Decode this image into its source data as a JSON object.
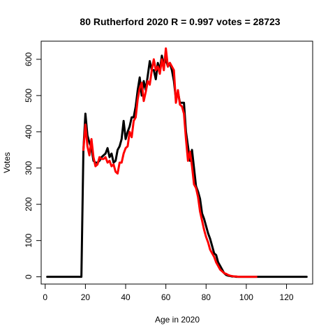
{
  "chart_data": {
    "type": "line",
    "title": "80 Rutherford 2020 R = 0.997 votes = 28723",
    "xlabel": "Age in 2020",
    "ylabel": "Votes",
    "xlim": [
      -2,
      133
    ],
    "ylim": [
      -20,
      650
    ],
    "xticks": [
      0,
      20,
      40,
      60,
      80,
      100,
      120
    ],
    "yticks": [
      0,
      100,
      200,
      300,
      400,
      500,
      600
    ],
    "grid": false,
    "legend": "none",
    "series": [
      {
        "color": "#000000",
        "x": [
          1,
          2,
          3,
          4,
          5,
          6,
          7,
          8,
          9,
          10,
          11,
          12,
          13,
          14,
          15,
          16,
          17,
          18,
          19,
          20,
          21,
          22,
          23,
          24,
          25,
          26,
          27,
          28,
          29,
          30,
          31,
          32,
          33,
          34,
          35,
          36,
          37,
          38,
          39,
          40,
          41,
          42,
          43,
          44,
          45,
          46,
          47,
          48,
          49,
          50,
          51,
          52,
          53,
          54,
          55,
          56,
          57,
          58,
          59,
          60,
          61,
          62,
          63,
          64,
          65,
          66,
          67,
          68,
          69,
          70,
          71,
          72,
          73,
          74,
          75,
          76,
          77,
          78,
          79,
          80,
          81,
          82,
          83,
          84,
          85,
          86,
          87,
          88,
          89,
          90,
          91,
          92,
          93,
          94,
          95,
          96,
          97,
          98,
          99,
          100,
          101,
          102,
          103,
          104,
          105,
          106,
          107,
          108,
          109,
          110,
          111,
          112,
          113,
          114,
          115,
          116,
          117,
          118,
          119,
          120,
          121,
          122,
          123,
          124,
          125,
          126,
          127,
          128,
          129,
          130
        ],
        "y": [
          0,
          0,
          0,
          0,
          0,
          0,
          0,
          0,
          0,
          0,
          0,
          0,
          0,
          0,
          0,
          0,
          0,
          0,
          350,
          450,
          390,
          370,
          355,
          320,
          315,
          315,
          320,
          330,
          335,
          340,
          355,
          330,
          340,
          315,
          320,
          350,
          360,
          380,
          430,
          380,
          400,
          415,
          440,
          440,
          470,
          515,
          550,
          500,
          540,
          515,
          555,
          595,
          570,
          570,
          545,
          590,
          570,
          610,
          585,
          600,
          580,
          590,
          570,
          540,
          490,
          510,
          480,
          480,
          480,
          400,
          360,
          320,
          350,
          300,
          250,
          235,
          215,
          175,
          160,
          140,
          120,
          105,
          85,
          65,
          60,
          40,
          30,
          20,
          10,
          5,
          3,
          2,
          1,
          1,
          0,
          0,
          0,
          0,
          0,
          0,
          0,
          0,
          0,
          0,
          0,
          0,
          0,
          0,
          0,
          0,
          0,
          0,
          0,
          0,
          0,
          0,
          0,
          0,
          0,
          0,
          0,
          0,
          0,
          0,
          0,
          0,
          0,
          0,
          0,
          0
        ]
      },
      {
        "color": "#ff0000",
        "x": [
          19,
          20,
          21,
          22,
          23,
          24,
          25,
          26,
          27,
          28,
          29,
          30,
          31,
          32,
          33,
          34,
          35,
          36,
          37,
          38,
          39,
          40,
          41,
          42,
          43,
          44,
          45,
          46,
          47,
          48,
          49,
          50,
          51,
          52,
          53,
          54,
          55,
          56,
          57,
          58,
          59,
          60,
          61,
          62,
          63,
          64,
          65,
          66,
          67,
          68,
          69,
          70,
          71,
          72,
          73,
          74,
          75,
          76,
          77,
          78,
          79,
          80,
          81,
          82,
          83,
          84,
          85,
          86,
          87,
          88,
          89,
          90,
          91,
          92,
          93,
          94,
          95,
          96,
          97,
          98,
          99,
          100,
          101,
          102,
          103,
          104,
          105
        ],
        "y": [
          350,
          420,
          360,
          335,
          380,
          330,
          305,
          310,
          330,
          325,
          325,
          330,
          315,
          320,
          305,
          310,
          290,
          285,
          315,
          315,
          340,
          355,
          360,
          400,
          385,
          430,
          440,
          490,
          520,
          535,
          485,
          510,
          540,
          530,
          570,
          600,
          570,
          580,
          560,
          600,
          570,
          630,
          580,
          590,
          580,
          570,
          480,
          515,
          475,
          470,
          450,
          380,
          320,
          345,
          305,
          255,
          245,
          220,
          180,
          155,
          130,
          110,
          95,
          75,
          65,
          55,
          40,
          30,
          20,
          15,
          10,
          8,
          5,
          3,
          2,
          1,
          1,
          0,
          0,
          0,
          0,
          0,
          0,
          0,
          0,
          0,
          0
        ]
      }
    ]
  }
}
